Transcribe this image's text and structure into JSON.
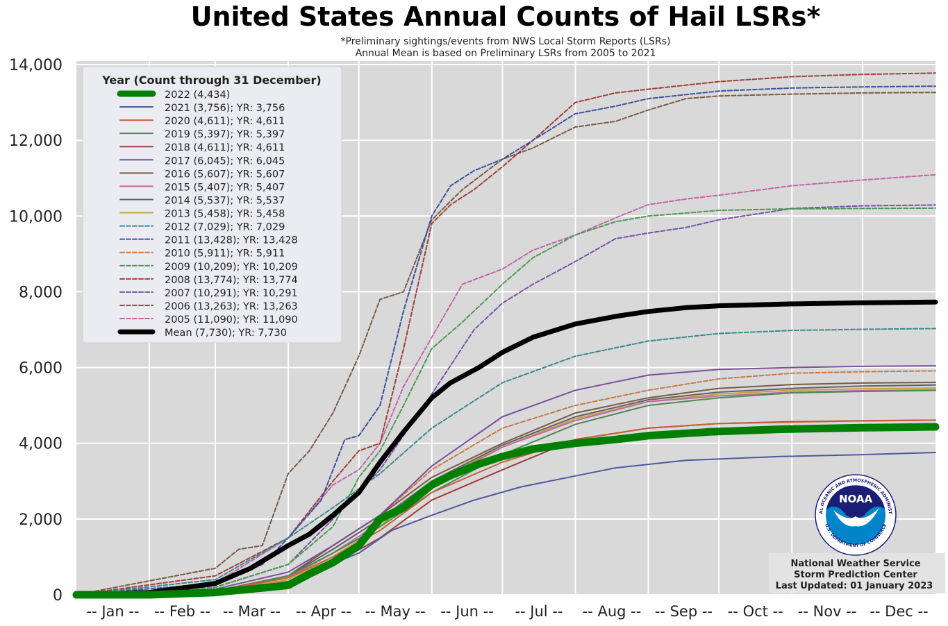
{
  "chart_data": {
    "type": "line",
    "title": "United States Annual Counts of Hail LSRs*",
    "subtitle_1": "*Preliminary sightings/events from NWS Local Storm Reports (LSRs)",
    "subtitle_2": "Annual Mean is based on Preliminary LSRs from 2005 to 2021",
    "legend_title": "Year (Count through 31 December)",
    "legend_position": "top-left",
    "ylim": [
      0,
      14000
    ],
    "xlim": [
      1,
      366
    ],
    "grid": true,
    "y_ticks": [
      "0",
      "2,000",
      "4,000",
      "6,000",
      "8,000",
      "10,000",
      "12,000",
      "14,000"
    ],
    "months": [
      "-- Jan --",
      "-- Feb --",
      "-- Mar --",
      "-- Apr --",
      "-- May --",
      "-- Jun --",
      "-- Jul --",
      "-- Aug --",
      "-- Sep --",
      "-- Oct --",
      "-- Nov --",
      "-- Dec --"
    ],
    "series": [
      {
        "name": "2022 (4,434)",
        "color": "#008000",
        "dash": "solid",
        "width": 11,
        "x": [
          1,
          32,
          60,
          75,
          91,
          100,
          110,
          121,
          130,
          140,
          152,
          160,
          172,
          182,
          195,
          213,
          230,
          244,
          270,
          300,
          335,
          366
        ],
        "y": [
          0,
          0,
          60,
          150,
          250,
          550,
          850,
          1300,
          2000,
          2300,
          2900,
          3150,
          3450,
          3650,
          3850,
          4000,
          4100,
          4200,
          4300,
          4370,
          4410,
          4434
        ]
      },
      {
        "name": "2021 (3,756); YR: 3,756",
        "color": "#4c5a9e",
        "dash": "solid",
        "width": 2,
        "x": [
          1,
          60,
          91,
          105,
          121,
          135,
          152,
          170,
          190,
          210,
          230,
          260,
          300,
          335,
          366
        ],
        "y": [
          0,
          50,
          300,
          700,
          1100,
          1700,
          2100,
          2500,
          2850,
          3100,
          3350,
          3550,
          3650,
          3700,
          3756
        ]
      },
      {
        "name": "2020 (4,611); YR: 4,611",
        "color": "#c95f3c",
        "dash": "solid",
        "width": 2,
        "x": [
          1,
          60,
          91,
          110,
          130,
          152,
          182,
          213,
          244,
          274,
          305,
          335,
          366
        ],
        "y": [
          0,
          100,
          450,
          1000,
          1700,
          2700,
          3500,
          4100,
          4400,
          4520,
          4560,
          4590,
          4611
        ]
      },
      {
        "name": "2019 (5,397); YR: 5,397",
        "color": "#4c8a52",
        "dash": "solid",
        "width": 2,
        "x": [
          1,
          60,
          91,
          110,
          130,
          152,
          182,
          213,
          244,
          274,
          305,
          335,
          366
        ],
        "y": [
          0,
          80,
          500,
          1100,
          1800,
          2700,
          3700,
          4500,
          5000,
          5200,
          5330,
          5370,
          5397
        ]
      },
      {
        "name": "2018 (4,611); YR: 4,611",
        "color": "#a63a3a",
        "dash": "solid",
        "width": 2,
        "x": [
          1,
          60,
          91,
          110,
          130,
          152,
          182,
          213,
          244,
          274,
          305,
          335,
          366
        ],
        "y": [
          0,
          60,
          350,
          800,
          1500,
          2500,
          3300,
          4100,
          4400,
          4520,
          4570,
          4595,
          4611
        ]
      },
      {
        "name": "2017 (6,045); YR: 6,045",
        "color": "#7a4f9a",
        "dash": "solid",
        "width": 2,
        "x": [
          1,
          60,
          91,
          110,
          130,
          152,
          182,
          213,
          244,
          274,
          305,
          335,
          366
        ],
        "y": [
          0,
          150,
          600,
          1300,
          2100,
          3400,
          4700,
          5400,
          5800,
          5950,
          6000,
          6030,
          6045
        ]
      },
      {
        "name": "2016 (5,607); YR: 5,607",
        "color": "#7a5a42",
        "dash": "solid",
        "width": 2,
        "x": [
          1,
          60,
          91,
          110,
          130,
          152,
          182,
          213,
          244,
          274,
          305,
          335,
          366
        ],
        "y": [
          0,
          100,
          500,
          1300,
          2100,
          3100,
          4000,
          4800,
          5200,
          5450,
          5550,
          5590,
          5607
        ]
      },
      {
        "name": "2015 (5,407); YR: 5,407",
        "color": "#c266a8",
        "dash": "solid",
        "width": 2,
        "x": [
          1,
          60,
          91,
          110,
          130,
          152,
          182,
          213,
          244,
          274,
          305,
          335,
          366
        ],
        "y": [
          0,
          80,
          450,
          1100,
          1900,
          2900,
          3900,
          4600,
          5100,
          5250,
          5350,
          5390,
          5407
        ]
      },
      {
        "name": "2014 (5,537); YR: 5,537",
        "color": "#5f6160",
        "dash": "solid",
        "width": 2,
        "x": [
          1,
          60,
          91,
          110,
          130,
          152,
          182,
          213,
          244,
          274,
          305,
          335,
          366
        ],
        "y": [
          0,
          80,
          500,
          1200,
          2000,
          3000,
          3950,
          4700,
          5150,
          5350,
          5450,
          5510,
          5537
        ]
      },
      {
        "name": "2013 (5,458); YR: 5,458",
        "color": "#c4a040",
        "dash": "solid",
        "width": 2,
        "x": [
          1,
          60,
          91,
          110,
          130,
          152,
          182,
          213,
          244,
          274,
          305,
          335,
          366
        ],
        "y": [
          0,
          60,
          400,
          1000,
          1800,
          3000,
          3900,
          4650,
          5100,
          5300,
          5400,
          5440,
          5458
        ]
      },
      {
        "name": "2012 (7,029); YR: 7,029",
        "color": "#3a8a8f",
        "dash": "dashed",
        "width": 2,
        "x": [
          1,
          60,
          91,
          110,
          130,
          152,
          182,
          213,
          244,
          274,
          305,
          335,
          366
        ],
        "y": [
          0,
          400,
          1500,
          2300,
          3200,
          4400,
          5600,
          6300,
          6700,
          6900,
          6980,
          7010,
          7029
        ]
      },
      {
        "name": "2011 (13,428); YR: 13,428",
        "color": "#3d52a0",
        "dash": "dashed",
        "width": 2,
        "x": [
          1,
          60,
          80,
          91,
          105,
          115,
          121,
          130,
          140,
          152,
          160,
          170,
          182,
          195,
          213,
          230,
          244,
          274,
          305,
          335,
          366
        ],
        "y": [
          0,
          300,
          800,
          1500,
          2500,
          4100,
          4200,
          5000,
          7500,
          10000,
          10800,
          11200,
          11500,
          12000,
          12700,
          12900,
          13100,
          13300,
          13380,
          13410,
          13428
        ]
      },
      {
        "name": "2010 (5,911); YR: 5,911",
        "color": "#c9784a",
        "dash": "dashed",
        "width": 2,
        "x": [
          1,
          60,
          91,
          110,
          130,
          152,
          182,
          213,
          244,
          274,
          305,
          335,
          366
        ],
        "y": [
          0,
          100,
          500,
          1300,
          2100,
          3300,
          4400,
          5000,
          5400,
          5700,
          5850,
          5890,
          5911
        ]
      },
      {
        "name": "2009 (10,209); YR: 10,209",
        "color": "#4c9a52",
        "dash": "dashed",
        "width": 2,
        "x": [
          1,
          60,
          91,
          110,
          121,
          130,
          140,
          152,
          165,
          182,
          195,
          213,
          230,
          244,
          274,
          305,
          335,
          366
        ],
        "y": [
          0,
          200,
          800,
          1800,
          3100,
          3800,
          5000,
          6500,
          7200,
          8200,
          8900,
          9500,
          9850,
          10000,
          10150,
          10190,
          10200,
          10209
        ]
      },
      {
        "name": "2008 (13,774); YR: 13,774",
        "color": "#a0403a",
        "dash": "dashed",
        "width": 2,
        "x": [
          1,
          60,
          91,
          110,
          121,
          130,
          140,
          152,
          160,
          170,
          182,
          195,
          213,
          230,
          244,
          274,
          305,
          335,
          366
        ],
        "y": [
          0,
          500,
          1500,
          3000,
          3800,
          4000,
          6500,
          9800,
          10300,
          10700,
          11300,
          12000,
          13000,
          13250,
          13350,
          13550,
          13680,
          13740,
          13774
        ]
      },
      {
        "name": "2007 (10,291); YR: 10,291",
        "color": "#7a52a8",
        "dash": "dashed",
        "width": 2,
        "x": [
          1,
          60,
          91,
          110,
          130,
          152,
          170,
          182,
          195,
          213,
          230,
          244,
          260,
          274,
          305,
          335,
          366
        ],
        "y": [
          0,
          200,
          800,
          2000,
          3300,
          5300,
          7000,
          7700,
          8200,
          8800,
          9400,
          9550,
          9700,
          9900,
          10200,
          10270,
          10291
        ]
      },
      {
        "name": "2006 (13,263); YR: 13,263",
        "color": "#7a5a46",
        "dash": "dashed",
        "width": 2,
        "x": [
          1,
          60,
          70,
          80,
          91,
          100,
          110,
          121,
          130,
          140,
          152,
          165,
          182,
          195,
          213,
          230,
          244,
          260,
          274,
          305,
          335,
          366
        ],
        "y": [
          0,
          700,
          1200,
          1300,
          3200,
          3800,
          4800,
          6300,
          7800,
          8000,
          9900,
          10700,
          11500,
          11800,
          12350,
          12500,
          12800,
          13100,
          13170,
          13220,
          13250,
          13263
        ]
      },
      {
        "name": "2005 (11,090); YR: 11,090",
        "color": "#c266a8",
        "dash": "dashed",
        "width": 2,
        "x": [
          1,
          60,
          91,
          110,
          121,
          130,
          140,
          152,
          165,
          182,
          195,
          213,
          230,
          244,
          260,
          274,
          305,
          335,
          366
        ],
        "y": [
          0,
          300,
          1500,
          2900,
          3300,
          4000,
          5500,
          6800,
          8200,
          8600,
          9100,
          9500,
          9950,
          10300,
          10450,
          10550,
          10800,
          10950,
          11090
        ]
      },
      {
        "name": "Mean (7,730); YR: 7,730",
        "color": "#000000",
        "dash": "solid",
        "width": 7,
        "x": [
          1,
          32,
          60,
          75,
          91,
          100,
          110,
          121,
          130,
          140,
          152,
          160,
          172,
          182,
          195,
          213,
          230,
          244,
          260,
          274,
          305,
          335,
          366
        ],
        "y": [
          0,
          60,
          300,
          700,
          1300,
          1600,
          2100,
          2700,
          3500,
          4300,
          5200,
          5600,
          6000,
          6400,
          6800,
          7150,
          7350,
          7480,
          7580,
          7630,
          7680,
          7710,
          7730
        ]
      }
    ]
  },
  "credit": {
    "line1": "National Weather Service",
    "line2": "Storm Prediction Center",
    "line3": "Last Updated: 01 January 2023"
  },
  "logo": {
    "text": "NOAA",
    "ring_text": "NATIONAL OCEANIC AND ATMOSPHERIC ADMINISTRATION",
    "ring_text_bottom": "U.S. DEPARTMENT OF COMMERCE",
    "colors": {
      "navy": "#1b1e77",
      "blue": "#0085ca"
    }
  }
}
